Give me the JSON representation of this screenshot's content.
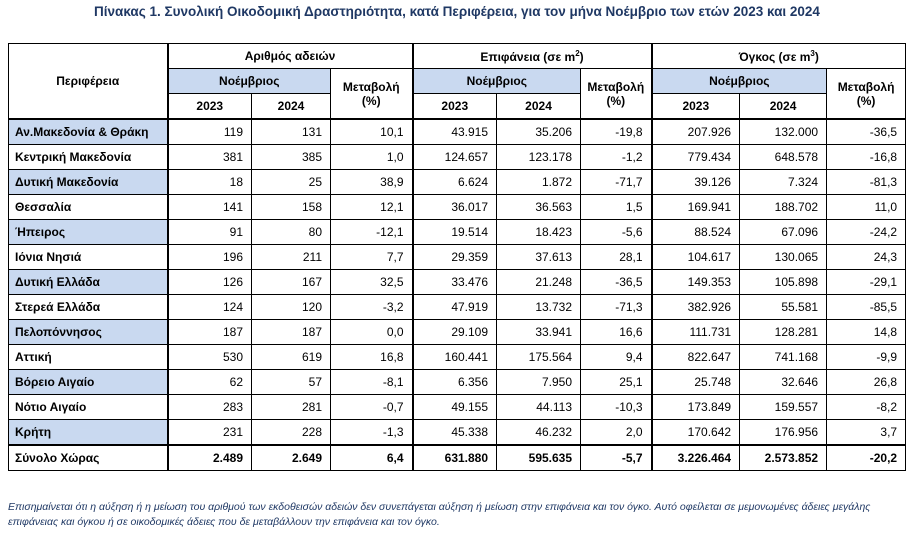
{
  "title": "Πίνακας 1. Συνολική Οικοδομική Δραστηριότητα, κατά  Περιφέρεια, για τον μήνα Νοέμβριο των ετών 2023 και 2024",
  "header": {
    "region": "Περιφέρεια",
    "permits": "Αριθμός αδειών",
    "surface": "Επιφάνεια (σε m",
    "surface_sup": "2",
    "volume": "Όγκος (σε m",
    "volume_sup": "3",
    "close_paren": ")",
    "month": "Νοέμβριος",
    "change": "Μεταβολή",
    "pct": "(%)",
    "y2023": "2023",
    "y2024": "2024"
  },
  "rows": [
    {
      "name": "Αν.Μακεδονία & Θράκη",
      "p23": "119",
      "p24": "131",
      "pc": "10,1",
      "s23": "43.915",
      "s24": "35.206",
      "sc": "-19,8",
      "v23": "207.926",
      "v24": "132.000",
      "vc": "-36,5"
    },
    {
      "name": "Κεντρική Μακεδονία",
      "p23": "381",
      "p24": "385",
      "pc": "1,0",
      "s23": "124.657",
      "s24": "123.178",
      "sc": "-1,2",
      "v23": "779.434",
      "v24": "648.578",
      "vc": "-16,8"
    },
    {
      "name": "Δυτική Μακεδονία",
      "p23": "18",
      "p24": "25",
      "pc": "38,9",
      "s23": "6.624",
      "s24": "1.872",
      "sc": "-71,7",
      "v23": "39.126",
      "v24": "7.324",
      "vc": "-81,3"
    },
    {
      "name": "Θεσσαλία",
      "p23": "141",
      "p24": "158",
      "pc": "12,1",
      "s23": "36.017",
      "s24": "36.563",
      "sc": "1,5",
      "v23": "169.941",
      "v24": "188.702",
      "vc": "11,0"
    },
    {
      "name": "Ήπειρος",
      "p23": "91",
      "p24": "80",
      "pc": "-12,1",
      "s23": "19.514",
      "s24": "18.423",
      "sc": "-5,6",
      "v23": "88.524",
      "v24": "67.096",
      "vc": "-24,2"
    },
    {
      "name": "Ιόνια Νησιά",
      "p23": "196",
      "p24": "211",
      "pc": "7,7",
      "s23": "29.359",
      "s24": "37.613",
      "sc": "28,1",
      "v23": "104.617",
      "v24": "130.065",
      "vc": "24,3"
    },
    {
      "name": "Δυτική Ελλάδα",
      "p23": "126",
      "p24": "167",
      "pc": "32,5",
      "s23": "33.476",
      "s24": "21.248",
      "sc": "-36,5",
      "v23": "149.353",
      "v24": "105.898",
      "vc": "-29,1"
    },
    {
      "name": "Στερεά Ελλάδα",
      "p23": "124",
      "p24": "120",
      "pc": "-3,2",
      "s23": "47.919",
      "s24": "13.732",
      "sc": "-71,3",
      "v23": "382.926",
      "v24": "55.581",
      "vc": "-85,5"
    },
    {
      "name": "Πελοπόννησος",
      "p23": "187",
      "p24": "187",
      "pc": "0,0",
      "s23": "29.109",
      "s24": "33.941",
      "sc": "16,6",
      "v23": "111.731",
      "v24": "128.281",
      "vc": "14,8"
    },
    {
      "name": "Αττική",
      "p23": "530",
      "p24": "619",
      "pc": "16,8",
      "s23": "160.441",
      "s24": "175.564",
      "sc": "9,4",
      "v23": "822.647",
      "v24": "741.168",
      "vc": "-9,9"
    },
    {
      "name": "Βόρειο Αιγαίο",
      "p23": "62",
      "p24": "57",
      "pc": "-8,1",
      "s23": "6.356",
      "s24": "7.950",
      "sc": "25,1",
      "v23": "25.748",
      "v24": "32.646",
      "vc": "26,8"
    },
    {
      "name": "Νότιο Αιγαίο",
      "p23": "283",
      "p24": "281",
      "pc": "-0,7",
      "s23": "49.155",
      "s24": "44.113",
      "sc": "-10,3",
      "v23": "173.849",
      "v24": "159.557",
      "vc": "-8,2"
    },
    {
      "name": "Κρήτη",
      "p23": "231",
      "p24": "228",
      "pc": "-1,3",
      "s23": "45.338",
      "s24": "46.232",
      "sc": "2,0",
      "v23": "170.642",
      "v24": "176.956",
      "vc": "3,7"
    }
  ],
  "total": {
    "name": "Σύνολο Χώρας",
    "p23": "2.489",
    "p24": "2.649",
    "pc": "6,4",
    "s23": "631.880",
    "s24": "595.635",
    "sc": "-5,7",
    "v23": "3.226.464",
    "v24": "2.573.852",
    "vc": "-20,2"
  },
  "note": "Επισημαίνεται ότι η αύξηση ή η μείωση του αριθμού των εκδοθεισών αδειών δεν συνεπάγεται αύξηση ή μείωση στην επιφάνεια και τον όγκο. Αυτό οφείλεται σε μεμονωμένες άδειες μεγάλης επιφάνειας και όγκου ή σε οικοδομικές άδειες που δε μεταβάλλουν την επιφάνεια και τον όγκο.",
  "colors": {
    "header_blue": "#c9d9f0",
    "title_navy": "#1f3864"
  }
}
